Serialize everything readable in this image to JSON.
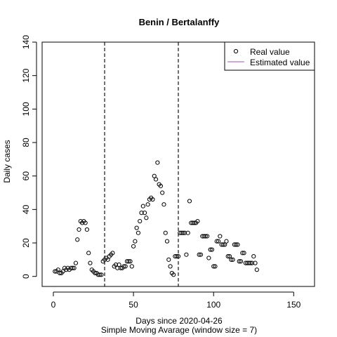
{
  "chart_data": {
    "type": "scatter",
    "title": "Benin / Bertalanffy",
    "xlabel": "Days since 2020-04-26",
    "xlabel2": "Simple Moving Avarage (window size = 7)",
    "ylabel": "Daily cases",
    "xlim": [
      -7,
      163
    ],
    "ylim": [
      -6,
      140
    ],
    "xticks": [
      0,
      50,
      100,
      150
    ],
    "yticks": [
      0,
      20,
      40,
      60,
      80,
      100,
      120,
      140
    ],
    "vlines": [
      32,
      78
    ],
    "grid": false,
    "legend_position": "top-right",
    "legend": [
      {
        "label": "Real value",
        "symbol": "open-circle",
        "color": "#000000"
      },
      {
        "label": "Estimated value",
        "symbol": "line",
        "color": "#9b59b6"
      }
    ],
    "series": [
      {
        "name": "Real value",
        "points": [
          [
            1,
            3
          ],
          [
            2,
            3
          ],
          [
            3,
            4
          ],
          [
            4,
            2
          ],
          [
            5,
            2
          ],
          [
            6,
            3
          ],
          [
            7,
            5
          ],
          [
            8,
            4
          ],
          [
            9,
            5
          ],
          [
            10,
            4
          ],
          [
            11,
            5
          ],
          [
            12,
            5
          ],
          [
            13,
            5
          ],
          [
            14,
            8
          ],
          [
            15,
            22
          ],
          [
            16,
            28
          ],
          [
            17,
            33
          ],
          [
            18,
            32
          ],
          [
            19,
            33
          ],
          [
            20,
            32
          ],
          [
            21,
            28
          ],
          [
            22,
            14
          ],
          [
            23,
            8
          ],
          [
            24,
            4
          ],
          [
            25,
            3
          ],
          [
            26,
            2
          ],
          [
            27,
            2
          ],
          [
            28,
            1
          ],
          [
            29,
            1
          ],
          [
            30,
            1
          ],
          [
            31,
            9
          ],
          [
            32,
            10
          ],
          [
            33,
            11
          ],
          [
            34,
            10
          ],
          [
            35,
            12
          ],
          [
            36,
            13
          ],
          [
            37,
            14
          ],
          [
            38,
            6
          ],
          [
            39,
            7
          ],
          [
            40,
            5
          ],
          [
            41,
            7
          ],
          [
            42,
            5
          ],
          [
            43,
            5
          ],
          [
            44,
            6
          ],
          [
            45,
            6
          ],
          [
            46,
            9
          ],
          [
            47,
            9
          ],
          [
            48,
            9
          ],
          [
            49,
            6
          ],
          [
            50,
            18
          ],
          [
            51,
            21
          ],
          [
            52,
            29
          ],
          [
            53,
            26
          ],
          [
            54,
            33
          ],
          [
            55,
            38
          ],
          [
            56,
            42
          ],
          [
            57,
            38
          ],
          [
            58,
            35
          ],
          [
            59,
            43
          ],
          [
            60,
            46
          ],
          [
            61,
            47
          ],
          [
            62,
            46
          ],
          [
            63,
            60
          ],
          [
            64,
            58
          ],
          [
            65,
            68
          ],
          [
            66,
            55
          ],
          [
            67,
            54
          ],
          [
            68,
            50
          ],
          [
            69,
            43
          ],
          [
            70,
            26
          ],
          [
            71,
            21
          ],
          [
            72,
            10
          ],
          [
            73,
            6
          ],
          [
            74,
            2
          ],
          [
            75,
            1
          ],
          [
            76,
            12
          ],
          [
            77,
            12
          ],
          [
            78,
            12
          ],
          [
            79,
            26
          ],
          [
            80,
            26
          ],
          [
            81,
            26
          ],
          [
            82,
            26
          ],
          [
            83,
            13
          ],
          [
            84,
            26
          ],
          [
            85,
            45
          ],
          [
            86,
            32
          ],
          [
            87,
            32
          ],
          [
            88,
            32
          ],
          [
            89,
            32
          ],
          [
            90,
            33
          ],
          [
            91,
            13
          ],
          [
            92,
            13
          ],
          [
            93,
            24
          ],
          [
            94,
            24
          ],
          [
            95,
            24
          ],
          [
            96,
            24
          ],
          [
            97,
            11
          ],
          [
            98,
            16
          ],
          [
            99,
            16
          ],
          [
            100,
            6
          ],
          [
            101,
            6
          ],
          [
            102,
            21
          ],
          [
            103,
            21
          ],
          [
            104,
            24
          ],
          [
            105,
            19
          ],
          [
            106,
            19
          ],
          [
            107,
            19
          ],
          [
            108,
            21
          ],
          [
            109,
            12
          ],
          [
            110,
            12
          ],
          [
            111,
            10
          ],
          [
            112,
            10
          ],
          [
            113,
            19
          ],
          [
            114,
            19
          ],
          [
            115,
            19
          ],
          [
            116,
            9
          ],
          [
            117,
            9
          ],
          [
            118,
            14
          ],
          [
            119,
            14
          ],
          [
            120,
            8
          ],
          [
            121,
            8
          ],
          [
            122,
            8
          ],
          [
            123,
            8
          ],
          [
            124,
            8
          ],
          [
            125,
            12
          ],
          [
            126,
            8
          ],
          [
            127,
            4
          ]
        ]
      },
      {
        "name": "Estimated value",
        "points": []
      }
    ]
  }
}
